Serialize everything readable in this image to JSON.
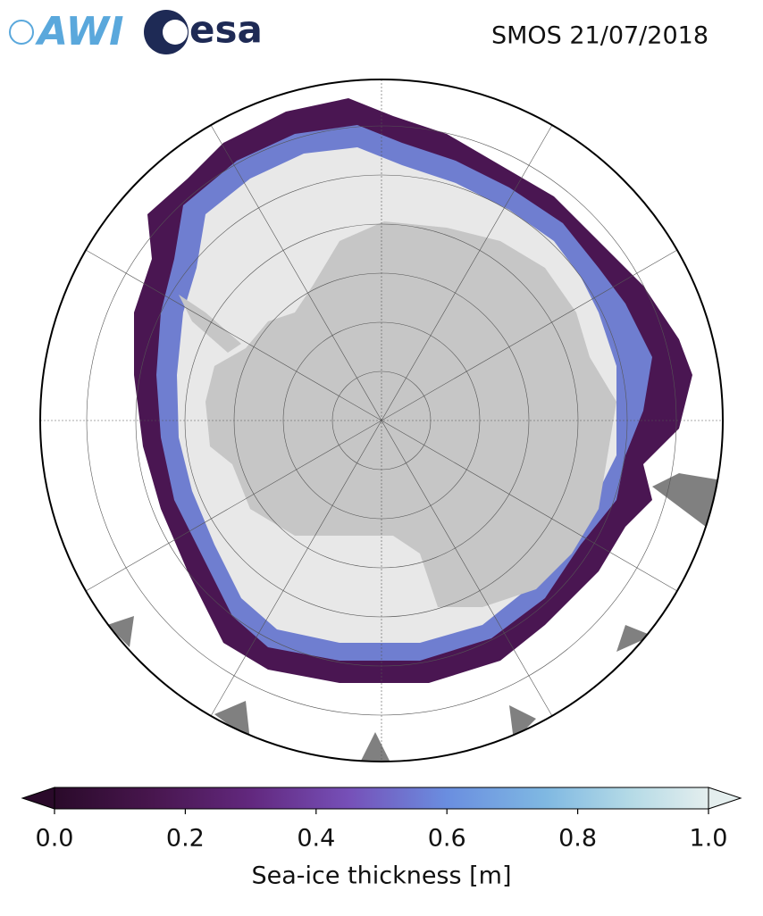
{
  "header": {
    "logos": [
      "AWI",
      "esa"
    ],
    "title": "SMOS 21/07/2018"
  },
  "colorbar": {
    "label": "Sea-ice thickness [m]",
    "lim": [
      0,
      1
    ],
    "ticks": [
      {
        "value": 0,
        "label": "0.0"
      },
      0.2,
      0.4,
      0.6,
      0.8,
      {
        "value": 1,
        "label": "1.0"
      }
    ]
  }
}
